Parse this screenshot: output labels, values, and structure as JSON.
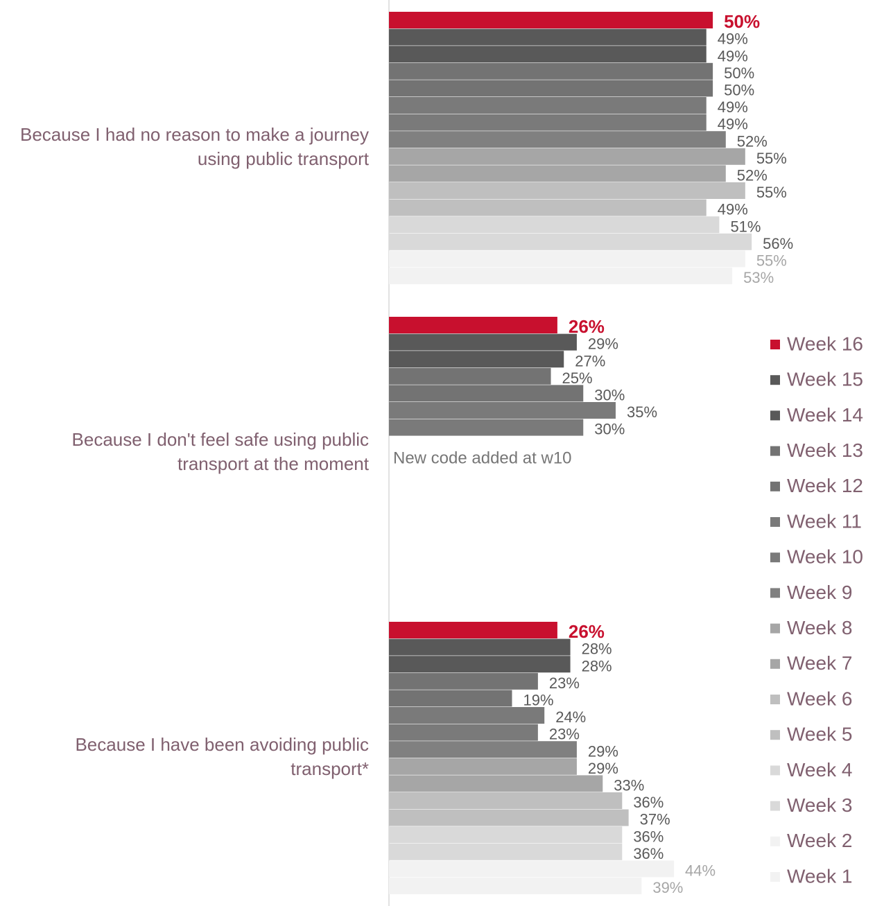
{
  "chart_data": {
    "type": "hbar",
    "categories": [
      "Because I had no reason to make a journey using public transport",
      "Because I don't feel safe using public transport at the moment",
      "Because I have been avoiding public transport*"
    ],
    "xlim": [
      0,
      76
    ],
    "annotation": "New code added at w10",
    "series": [
      {
        "name": "Week 16",
        "color": "#c8102e",
        "label_color": "#c8102e",
        "values": [
          50,
          26,
          26
        ],
        "value_labels": [
          "50%",
          "26%",
          "26%"
        ]
      },
      {
        "name": "Week 15",
        "color": "#595959",
        "label_color": "#595959",
        "values": [
          49,
          29,
          28
        ],
        "value_labels": [
          "49%",
          "29%",
          "28%"
        ]
      },
      {
        "name": "Week 14",
        "color": "#595959",
        "label_color": "#595959",
        "values": [
          49,
          27,
          28
        ],
        "value_labels": [
          "49%",
          "27%",
          "28%"
        ]
      },
      {
        "name": "Week 13",
        "color": "#737373",
        "label_color": "#595959",
        "values": [
          50,
          25,
          23
        ],
        "value_labels": [
          "50%",
          "25%",
          "23%"
        ]
      },
      {
        "name": "Week 12",
        "color": "#737373",
        "label_color": "#595959",
        "values": [
          50,
          30,
          19
        ],
        "value_labels": [
          "50%",
          "30%",
          "19%"
        ]
      },
      {
        "name": "Week 11",
        "color": "#7a7a7a",
        "label_color": "#595959",
        "values": [
          49,
          35,
          24
        ],
        "value_labels": [
          "49%",
          "35%",
          "24%"
        ]
      },
      {
        "name": "Week 10",
        "color": "#7a7a7a",
        "label_color": "#595959",
        "values": [
          49,
          30,
          23
        ],
        "value_labels": [
          "49%",
          "30%",
          "23%"
        ]
      },
      {
        "name": "Week 9",
        "color": "#808080",
        "label_color": "#595959",
        "values": [
          52,
          null,
          29
        ],
        "value_labels": [
          "52%",
          null,
          "29%"
        ]
      },
      {
        "name": "Week 8",
        "color": "#a6a6a6",
        "label_color": "#595959",
        "values": [
          55,
          null,
          29
        ],
        "value_labels": [
          "55%",
          null,
          "29%"
        ]
      },
      {
        "name": "Week 7",
        "color": "#a6a6a6",
        "label_color": "#595959",
        "values": [
          52,
          null,
          33
        ],
        "value_labels": [
          "52%",
          null,
          "33%"
        ]
      },
      {
        "name": "Week 6",
        "color": "#bfbfbf",
        "label_color": "#595959",
        "values": [
          55,
          null,
          36
        ],
        "value_labels": [
          "55%",
          null,
          "36%"
        ]
      },
      {
        "name": "Week 5",
        "color": "#bfbfbf",
        "label_color": "#595959",
        "values": [
          49,
          null,
          37
        ],
        "value_labels": [
          "49%",
          null,
          "37%"
        ]
      },
      {
        "name": "Week 4",
        "color": "#d9d9d9",
        "label_color": "#595959",
        "values": [
          51,
          null,
          36
        ],
        "value_labels": [
          "51%",
          null,
          "36%"
        ]
      },
      {
        "name": "Week 3",
        "color": "#d9d9d9",
        "label_color": "#595959",
        "values": [
          56,
          null,
          36
        ],
        "value_labels": [
          "56%",
          null,
          "36%"
        ]
      },
      {
        "name": "Week 2",
        "color": "#f2f2f2",
        "label_color": "#a6a6a6",
        "values": [
          55,
          null,
          44
        ],
        "value_labels": [
          "55%",
          null,
          "44%"
        ]
      },
      {
        "name": "Week 1",
        "color": "#f2f2f2",
        "label_color": "#a6a6a6",
        "values": [
          53,
          null,
          39
        ],
        "value_labels": [
          "53%",
          null,
          "39%"
        ]
      }
    ]
  }
}
